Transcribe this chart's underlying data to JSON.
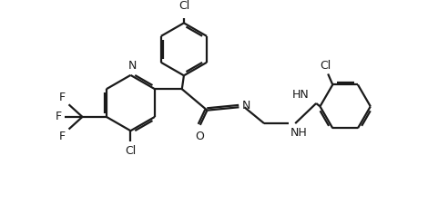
{
  "bg_color": "#ffffff",
  "line_color": "#1a1a1a",
  "text_color": "#1a1a1a",
  "line_width": 1.6,
  "figsize": [
    4.7,
    2.25
  ],
  "dpi": 100,
  "xlim": [
    0,
    10
  ],
  "ylim": [
    0,
    4.8
  ]
}
